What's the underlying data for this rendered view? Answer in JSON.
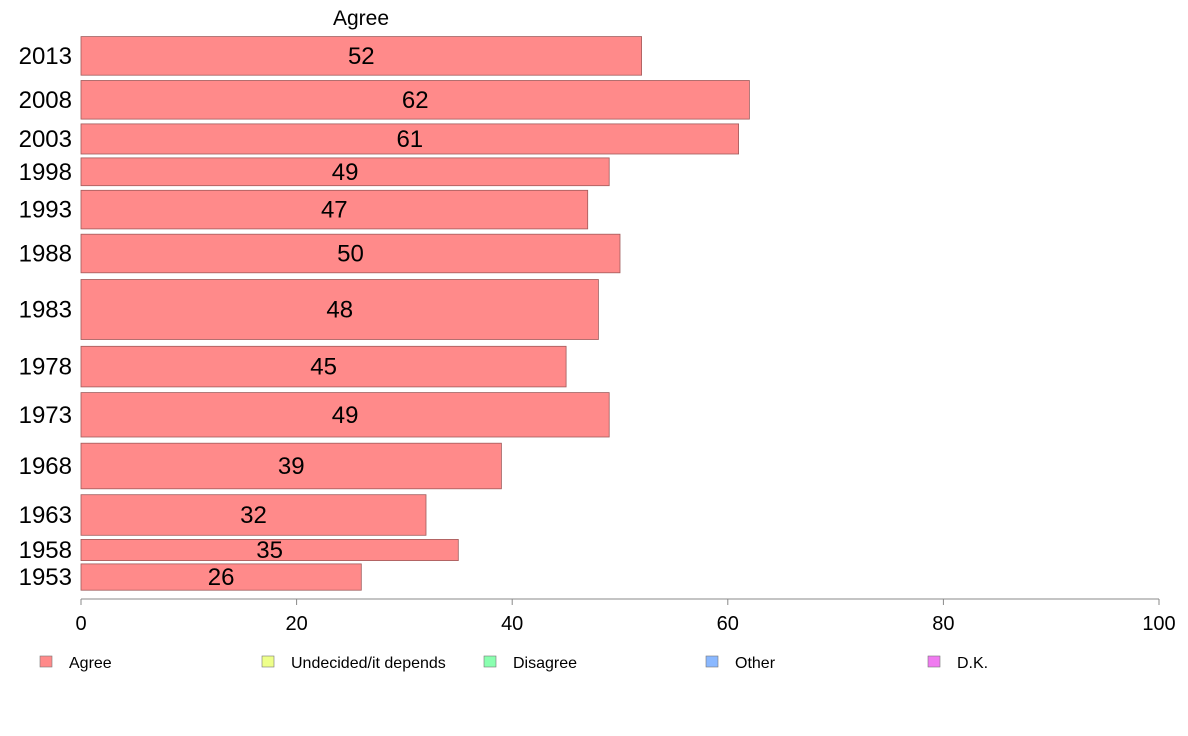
{
  "chart_data": {
    "type": "bar",
    "orientation": "horizontal",
    "title": "Agree",
    "categories": [
      "2013",
      "2008",
      "2003",
      "1998",
      "1993",
      "1988",
      "1983",
      "1978",
      "1973",
      "1968",
      "1963",
      "1958",
      "1953"
    ],
    "series": [
      {
        "name": "Agree",
        "color": "#ff8a8a",
        "values": [
          52,
          62,
          61,
          49,
          47,
          50,
          48,
          45,
          49,
          39,
          32,
          35,
          26
        ],
        "labels": [
          "52",
          "62",
          "61",
          "49",
          "47",
          "50",
          "48",
          "45",
          "49",
          "39",
          "32",
          "35",
          "26"
        ]
      }
    ],
    "category_weights": [
      1.0,
      1.0,
      0.78,
      0.72,
      1.0,
      1.0,
      1.55,
      1.05,
      1.15,
      1.18,
      1.05,
      0.55,
      0.68
    ],
    "xlim": [
      0,
      100
    ],
    "xticks": [
      0,
      20,
      40,
      60,
      80,
      100
    ],
    "xtick_labels": [
      "0",
      "20",
      "40",
      "60",
      "80",
      "100"
    ],
    "xlabel": "",
    "ylabel": "",
    "grid": false,
    "legend_position": "bottom",
    "legend": [
      {
        "label": "Agree",
        "color": "#ff8a8a"
      },
      {
        "label": "Undecided/it depends",
        "color": "#eeff8a"
      },
      {
        "label": "Disagree",
        "color": "#8affb0"
      },
      {
        "label": "Other",
        "color": "#8ab8ff"
      },
      {
        "label": "D.K.",
        "color": "#f07af0"
      }
    ]
  }
}
